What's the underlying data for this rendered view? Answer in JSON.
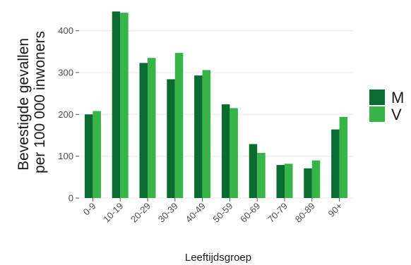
{
  "chart_data": {
    "type": "bar",
    "xlabel": "Leeftijdsgroep",
    "ylabel": "Bevestigde gevallen per 100 000 inwoners",
    "ylabel_lines": [
      "Bevestigde gevallen",
      "per 100 000 inwoners"
    ],
    "categories": [
      "0-9",
      "10-19",
      "20-29",
      "30-39",
      "40-49",
      "50-59",
      "60-69",
      "70-79",
      "80-89",
      "90+"
    ],
    "series": [
      {
        "name": "M",
        "color": "#0a6b2f",
        "values": [
          200,
          446,
          323,
          284,
          293,
          224,
          129,
          79,
          71,
          164
        ]
      },
      {
        "name": "V",
        "color": "#38b549",
        "values": [
          208,
          443,
          335,
          347,
          306,
          215,
          108,
          82,
          90,
          194
        ]
      }
    ],
    "yticks": [
      0,
      100,
      200,
      300,
      400
    ],
    "ylim": [
      0,
      460
    ],
    "grid": true,
    "legend_position": "right"
  }
}
